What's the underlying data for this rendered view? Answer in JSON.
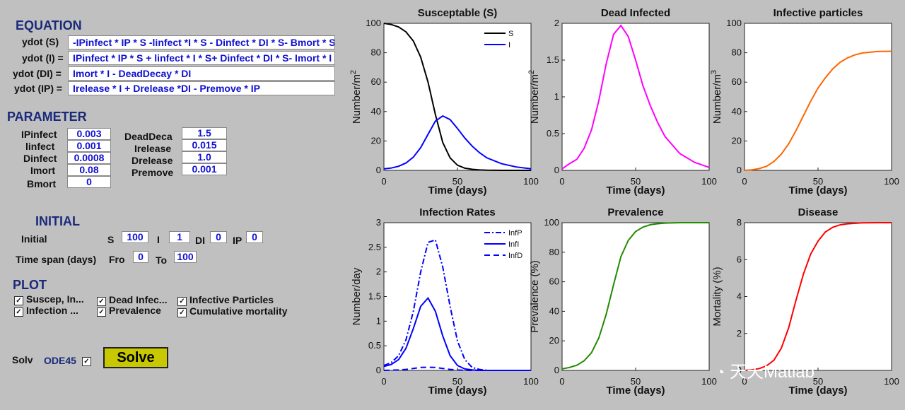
{
  "equation": {
    "title": "EQUATION",
    "rows": [
      {
        "label": "ydot (S)",
        "expr": "-IPinfect  * IP * S -linfect  *I * S - Dinfect * DI * S- Bmort * S"
      },
      {
        "label": "ydot (I) =",
        "expr": "IPinfect * IP * S + linfect * I * S+ Dinfect * DI * S- Imort * I"
      },
      {
        "label": "ydot (DI) =",
        "expr": "Imort * I - DeadDecay * DI"
      },
      {
        "label": "ydot (IP) =",
        "expr": "Irelease * I + Drelease *DI - Premove * IP"
      }
    ]
  },
  "parameter": {
    "title": "PARAMETER",
    "left": [
      {
        "label": "IPinfect",
        "value": "0.003"
      },
      {
        "label": "linfect",
        "value": "0.001"
      },
      {
        "label": "Dinfect",
        "value": "0.0008"
      },
      {
        "label": "Imort",
        "value": "0.08"
      },
      {
        "label": "Bmort",
        "value": "0"
      }
    ],
    "right": [
      {
        "label": "DeadDeca",
        "value": "1.5"
      },
      {
        "label": "Irelease",
        "value": "0.015"
      },
      {
        "label": "Drelease",
        "value": "1.0"
      },
      {
        "label": "Premove",
        "value": "0.001"
      }
    ]
  },
  "initial": {
    "title": "INITIAL",
    "label": "Initial",
    "S_label": "S",
    "S": "100",
    "I_label": "I",
    "I": "1",
    "DI_label": "DI",
    "DI": "0",
    "IP_label": "IP",
    "IP": "0",
    "span_label": "Time span (days)",
    "from_label": "Fro",
    "from": "0",
    "to_label": "To",
    "to": "100"
  },
  "plot": {
    "title": "PLOT",
    "checks": [
      {
        "label": "Suscep, In...",
        "checked": true
      },
      {
        "label": "Dead Infec...",
        "checked": true
      },
      {
        "label": "Infective Particles",
        "checked": true
      },
      {
        "label": "Infection ...",
        "checked": true
      },
      {
        "label": "Prevalence",
        "checked": true
      },
      {
        "label": "Cumulative mortality",
        "checked": true
      }
    ]
  },
  "solver": {
    "label": "Solv",
    "method": "ODE45",
    "checked": true,
    "button": "Solve"
  },
  "watermark": "天天Matlab",
  "chart_data": [
    {
      "type": "line",
      "title": "Susceptable (S)",
      "xlabel": "Time (days)",
      "ylabel": "Number/m",
      "ylabel_sup": "2",
      "xlim": [
        0,
        100
      ],
      "ylim": [
        0,
        100
      ],
      "xticks": [
        0,
        50,
        100
      ],
      "yticks": [
        0,
        20,
        40,
        60,
        80,
        100
      ],
      "legend": {
        "position": "top-right",
        "entries": [
          "S",
          "I"
        ]
      },
      "series": [
        {
          "name": "S",
          "color": "#000000",
          "style": "solid",
          "x": [
            0,
            5,
            10,
            15,
            20,
            25,
            30,
            35,
            40,
            45,
            50,
            55,
            60,
            65,
            70,
            80,
            90,
            100
          ],
          "y": [
            100,
            99.2,
            97.5,
            94.2,
            88,
            77,
            60,
            38,
            19,
            8.5,
            3.5,
            1.5,
            0.7,
            0.3,
            0.1,
            0,
            0,
            0
          ]
        },
        {
          "name": "I",
          "color": "#0000ff",
          "style": "solid",
          "x": [
            0,
            5,
            10,
            15,
            20,
            25,
            30,
            35,
            40,
            45,
            50,
            55,
            60,
            65,
            70,
            80,
            90,
            100
          ],
          "y": [
            1,
            1.6,
            2.8,
            5,
            9,
            15.5,
            24.5,
            33.5,
            37,
            34.5,
            28.5,
            22,
            16.5,
            12,
            8.5,
            4.5,
            2.3,
            1.1
          ]
        }
      ]
    },
    {
      "type": "line",
      "title": "Dead Infected",
      "xlabel": "Time (days)",
      "ylabel": "Number/m",
      "ylabel_sup": "2",
      "xlim": [
        0,
        100
      ],
      "ylim": [
        0,
        2
      ],
      "xticks": [
        0,
        50,
        100
      ],
      "yticks": [
        0,
        0.5,
        1,
        1.5,
        2
      ],
      "series": [
        {
          "name": "DI",
          "color": "#ff00ff",
          "style": "solid",
          "x": [
            0,
            5,
            10,
            15,
            20,
            25,
            30,
            35,
            40,
            45,
            50,
            55,
            60,
            65,
            70,
            80,
            90,
            100
          ],
          "y": [
            0.02,
            0.09,
            0.15,
            0.3,
            0.55,
            0.95,
            1.45,
            1.85,
            1.97,
            1.82,
            1.5,
            1.15,
            0.88,
            0.65,
            0.46,
            0.23,
            0.11,
            0.04
          ]
        }
      ]
    },
    {
      "type": "line",
      "title": "Infective particles",
      "xlabel": "Time (days)",
      "ylabel": "Number/m",
      "ylabel_sup": "3",
      "xlim": [
        0,
        100
      ],
      "ylim": [
        0,
        100
      ],
      "xticks": [
        0,
        50,
        100
      ],
      "yticks": [
        0,
        20,
        40,
        60,
        80,
        100
      ],
      "series": [
        {
          "name": "IP",
          "color": "#ff6600",
          "style": "solid",
          "x": [
            0,
            5,
            10,
            15,
            20,
            25,
            30,
            35,
            40,
            45,
            50,
            55,
            60,
            65,
            70,
            75,
            80,
            90,
            100
          ],
          "y": [
            0,
            0.4,
            1.2,
            2.8,
            6,
            11,
            18,
            27,
            37,
            47,
            56,
            63,
            69,
            73.5,
            76.5,
            78.5,
            79.8,
            80.8,
            81
          ]
        }
      ]
    },
    {
      "type": "line",
      "title": "Infection Rates",
      "xlabel": "Time (days)",
      "ylabel": "Number/day",
      "xlim": [
        0,
        100
      ],
      "ylim": [
        0,
        3
      ],
      "xticks": [
        0,
        50,
        100
      ],
      "yticks": [
        0,
        0.5,
        1,
        1.5,
        2,
        2.5,
        3
      ],
      "legend": {
        "position": "top-right",
        "entries": [
          "InfP",
          "InfI",
          "InfD"
        ]
      },
      "series": [
        {
          "name": "InfP",
          "color": "#0000ff",
          "style": "dashdot",
          "x": [
            0,
            5,
            10,
            15,
            20,
            25,
            30,
            35,
            40,
            45,
            50,
            55,
            60,
            65,
            70,
            80,
            90,
            100
          ],
          "y": [
            0.1,
            0.16,
            0.3,
            0.62,
            1.2,
            2,
            2.6,
            2.65,
            2.1,
            1.3,
            0.6,
            0.22,
            0.06,
            0.02,
            0,
            0,
            0,
            0
          ]
        },
        {
          "name": "InfI",
          "color": "#0000ff",
          "style": "solid",
          "x": [
            0,
            5,
            10,
            15,
            20,
            25,
            30,
            35,
            40,
            45,
            50,
            55,
            60,
            65,
            70,
            80,
            90,
            100
          ],
          "y": [
            0.08,
            0.12,
            0.22,
            0.45,
            0.85,
            1.3,
            1.47,
            1.2,
            0.7,
            0.3,
            0.1,
            0.03,
            0.01,
            0,
            0,
            0,
            0,
            0
          ]
        },
        {
          "name": "InfD",
          "color": "#0000ff",
          "style": "dashed",
          "x": [
            0,
            5,
            10,
            15,
            20,
            25,
            30,
            35,
            40,
            45,
            50,
            55,
            60,
            65,
            70,
            80,
            90,
            100
          ],
          "y": [
            0,
            0.005,
            0.01,
            0.02,
            0.04,
            0.06,
            0.065,
            0.06,
            0.04,
            0.02,
            0.008,
            0.002,
            0,
            0,
            0,
            0,
            0,
            0
          ]
        }
      ]
    },
    {
      "type": "line",
      "title": "Prevalence",
      "xlabel": "Time (days)",
      "ylabel": "Prevalence (%)",
      "xlim": [
        0,
        100
      ],
      "ylim": [
        0,
        100
      ],
      "xticks": [
        0,
        50,
        100
      ],
      "yticks": [
        0,
        20,
        40,
        60,
        80,
        100
      ],
      "series": [
        {
          "name": "Prevalence",
          "color": "#228b00",
          "style": "solid",
          "x": [
            0,
            5,
            10,
            15,
            20,
            25,
            30,
            35,
            40,
            45,
            50,
            55,
            60,
            65,
            70,
            80,
            90,
            100
          ],
          "y": [
            1,
            2,
            3.5,
            6.5,
            12,
            22,
            38,
            58,
            77,
            88,
            94,
            97,
            98.6,
            99.3,
            99.7,
            100,
            100,
            100
          ]
        }
      ]
    },
    {
      "type": "line",
      "title": "Disease",
      "xlabel": "Time (days)",
      "ylabel": "Mortality (%)",
      "xlim": [
        0,
        100
      ],
      "ylim": [
        0,
        8
      ],
      "xticks": [
        0,
        50,
        100
      ],
      "yticks": [
        0,
        2,
        4,
        6,
        8
      ],
      "series": [
        {
          "name": "Mortality",
          "color": "#ff0000",
          "style": "solid",
          "x": [
            0,
            5,
            10,
            15,
            20,
            25,
            30,
            35,
            40,
            45,
            50,
            55,
            60,
            65,
            70,
            80,
            90,
            100
          ],
          "y": [
            0,
            0.03,
            0.1,
            0.25,
            0.55,
            1.2,
            2.3,
            3.8,
            5.2,
            6.3,
            7,
            7.5,
            7.75,
            7.88,
            7.94,
            7.99,
            8,
            8
          ]
        }
      ]
    }
  ]
}
